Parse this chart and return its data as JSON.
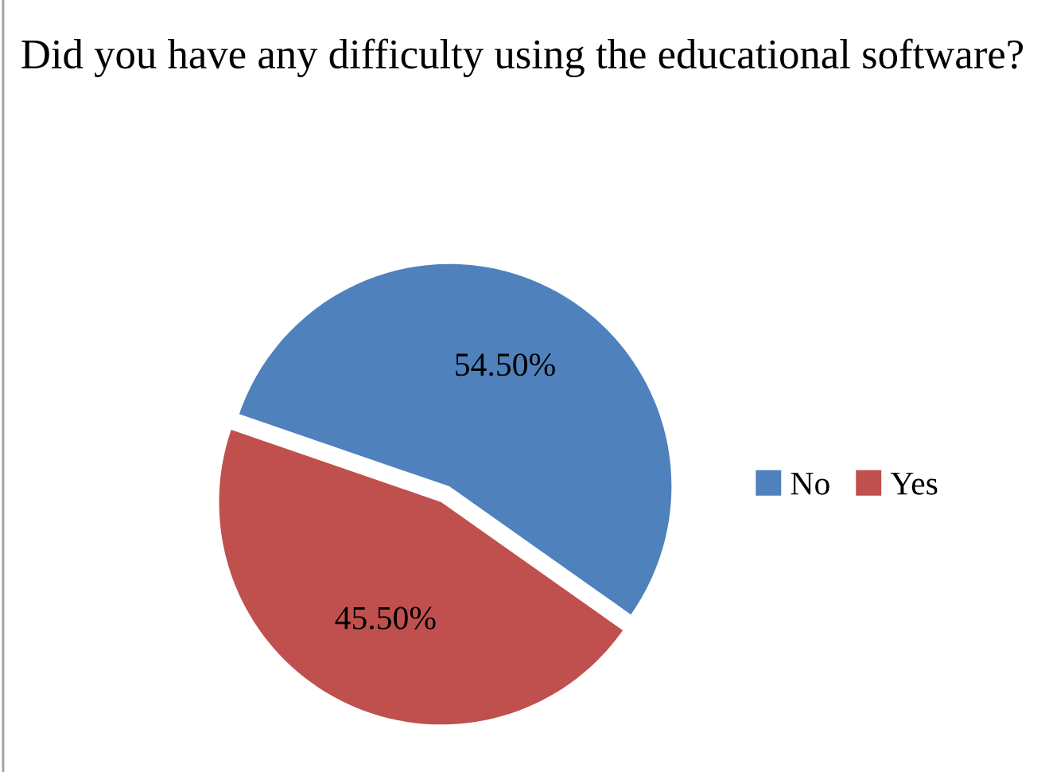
{
  "chart_data": {
    "type": "pie",
    "title": "Did you have any difficulty using the educational software?",
    "categories": [
      "No",
      "Yes"
    ],
    "values": [
      54.5,
      45.5
    ],
    "value_labels": [
      "54.50%",
      "45.50%"
    ],
    "colors": [
      "#4f81bd",
      "#c0504d"
    ],
    "legend": "right"
  }
}
